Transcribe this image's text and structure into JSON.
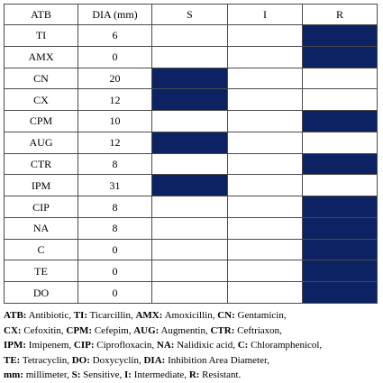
{
  "table": {
    "headers": {
      "atb": "ATB",
      "dia": "DIA (mm)",
      "s": "S",
      "i": "I",
      "r": "R"
    },
    "colors": {
      "marked_cell": "#0d2262",
      "border": "#4a4a4a"
    },
    "rows": [
      {
        "atb": "TI",
        "dia": "6",
        "result": "R"
      },
      {
        "atb": "AMX",
        "dia": "0",
        "result": "R"
      },
      {
        "atb": "CN",
        "dia": "20",
        "result": "S"
      },
      {
        "atb": "CX",
        "dia": "12",
        "result": "S"
      },
      {
        "atb": "CPM",
        "dia": "10",
        "result": "R"
      },
      {
        "atb": "AUG",
        "dia": "12",
        "result": "S"
      },
      {
        "atb": "CTR",
        "dia": "8",
        "result": "R"
      },
      {
        "atb": "IPM",
        "dia": "31",
        "result": "S"
      },
      {
        "atb": "CIP",
        "dia": "8",
        "result": "R"
      },
      {
        "atb": "NA",
        "dia": "8",
        "result": "R"
      },
      {
        "atb": "C",
        "dia": "0",
        "result": "R"
      },
      {
        "atb": "TE",
        "dia": "0",
        "result": "R"
      },
      {
        "atb": "DO",
        "dia": "0",
        "result": "R"
      }
    ]
  },
  "legend": {
    "lines": [
      [
        {
          "term": "ATB:",
          "desc": " Antibiotic, "
        },
        {
          "term": "TI:",
          "desc": " Ticarcillin, "
        },
        {
          "term": "AMX:",
          "desc": " Amoxicillin, "
        },
        {
          "term": "CN:",
          "desc": " Gentamicin,"
        }
      ],
      [
        {
          "term": "CX:",
          "desc": " Cefoxitin, "
        },
        {
          "term": "CPM:",
          "desc": " Cefepim, "
        },
        {
          "term": "AUG:",
          "desc": " Augmentin, "
        },
        {
          "term": "CTR:",
          "desc": " Ceftriaxon,"
        }
      ],
      [
        {
          "term": "IPM:",
          "desc": " Imipenem, "
        },
        {
          "term": "CIP:",
          "desc": " Ciprofloxacin, "
        },
        {
          "term": "NA:",
          "desc": " Nalidixic acid, "
        },
        {
          "term": "C:",
          "desc": " Chloramphenicol,"
        }
      ],
      [
        {
          "term": "TE:",
          "desc": " Tetracyclin, "
        },
        {
          "term": "DO:",
          "desc": " Doxycyclin, "
        },
        {
          "term": "DIA:",
          "desc": " Inhibition Area Diameter,"
        }
      ],
      [
        {
          "term": "mm:",
          "desc": " millimeter, "
        },
        {
          "term": "S:",
          "desc": " Sensitive, "
        },
        {
          "term": "I:",
          "desc": " Intermediate, "
        },
        {
          "term": "R:",
          "desc": " Resistant."
        }
      ]
    ]
  }
}
